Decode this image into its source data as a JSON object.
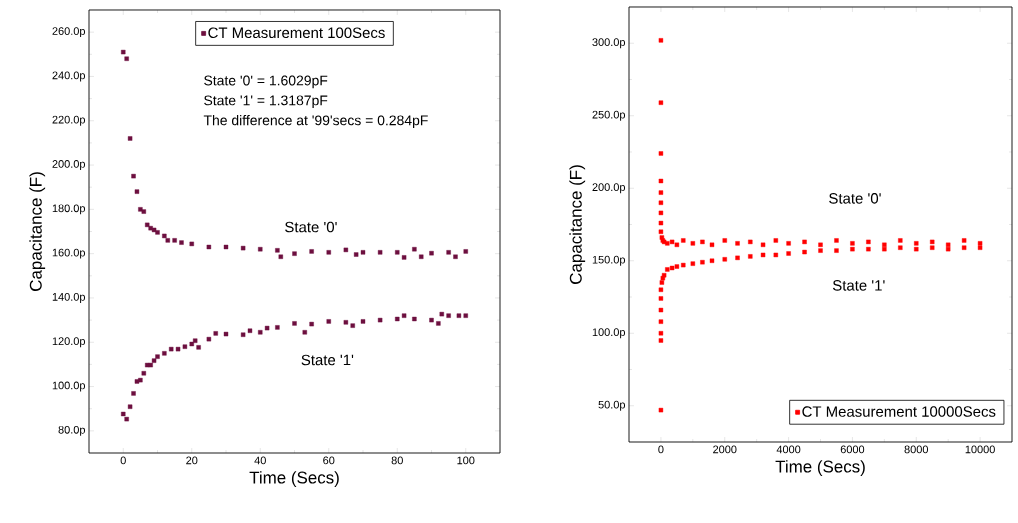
{
  "chart_data": [
    {
      "type": "scatter",
      "xlabel": "Time (Secs)",
      "ylabel": "Capacitance (F)",
      "marker": "square",
      "legend": "top",
      "xlim": [
        -10,
        110
      ],
      "ylim": [
        70,
        270
      ],
      "xticks": [
        0,
        20,
        40,
        60,
        80,
        100
      ],
      "yticks": [
        {
          "value": 80,
          "label": "80.0p"
        },
        {
          "value": 100,
          "label": "100.0p"
        },
        {
          "value": 120,
          "label": "120.0p"
        },
        {
          "value": 140,
          "label": "140.0p"
        },
        {
          "value": 160,
          "label": "160.0p"
        },
        {
          "value": 180,
          "label": "180.0p"
        },
        {
          "value": 200,
          "label": "200.0p"
        },
        {
          "value": 220,
          "label": "220.0p"
        },
        {
          "value": 240,
          "label": "240.0p"
        },
        {
          "value": 260,
          "label": "260.0p"
        }
      ],
      "annotations": [
        "State '0' = 1.6029pF",
        "State '1' = 1.3187pF",
        "The difference at '99'secs = 0.284pF",
        "State '0'",
        "State '1'"
      ],
      "series": [
        {
          "name": "CT Measurement 100Secs",
          "color": "#6d0f3f",
          "x": [
            0,
            1,
            2,
            3,
            4,
            5,
            6,
            7,
            8,
            9,
            10,
            12,
            13,
            15,
            17,
            20,
            25,
            30,
            35,
            40,
            45,
            46,
            50,
            55,
            60,
            65,
            68,
            70,
            75,
            80,
            82,
            85,
            87,
            90,
            95,
            97,
            100,
            0,
            1,
            2,
            3,
            4,
            5,
            6,
            7,
            8,
            9,
            10,
            12,
            14,
            16,
            18,
            20,
            21,
            22,
            25,
            27,
            30,
            35,
            37,
            40,
            42,
            45,
            50,
            53,
            55,
            60,
            65,
            67,
            70,
            75,
            80,
            82,
            85,
            90,
            92,
            93,
            95,
            98,
            100
          ],
          "values": [
            251,
            248,
            212,
            195,
            188,
            180,
            179,
            173,
            171.5,
            170.7,
            169.6,
            168,
            166,
            166,
            165,
            164.4,
            163,
            163,
            162.5,
            162,
            161.5,
            158.6,
            160,
            161,
            160.6,
            161.7,
            159.6,
            160.6,
            160.6,
            160.6,
            158.3,
            162,
            158.6,
            160.2,
            160.6,
            158.6,
            161,
            87.6,
            85.3,
            90.9,
            96.9,
            102.3,
            102.9,
            106,
            109.7,
            109.7,
            111.7,
            113.5,
            115,
            116.9,
            116.9,
            118,
            119.2,
            120.7,
            117.7,
            121.4,
            124,
            123.7,
            123.4,
            125.2,
            124.5,
            126.4,
            126.7,
            128.5,
            124.5,
            128.2,
            129.4,
            129,
            127.5,
            129.4,
            130,
            130.5,
            132,
            130.5,
            130,
            128.5,
            132.7,
            132,
            132,
            132
          ]
        }
      ]
    },
    {
      "type": "scatter",
      "xlabel": "Time (Secs)",
      "ylabel": "Capacitance (F)",
      "marker": "square",
      "legend": "bottom right",
      "xlim": [
        -1000,
        11000
      ],
      "ylim": [
        25,
        325
      ],
      "xticks": [
        0,
        2000,
        4000,
        6000,
        8000,
        10000
      ],
      "yticks": [
        {
          "value": 50,
          "label": "50.0p"
        },
        {
          "value": 100,
          "label": "100.0p"
        },
        {
          "value": 150,
          "label": "150.0p"
        },
        {
          "value": 200,
          "label": "200.0p"
        },
        {
          "value": 250,
          "label": "250.0p"
        },
        {
          "value": 300,
          "label": "300.0p"
        }
      ],
      "annotations": [
        "State '0'",
        "State '1'"
      ],
      "series": [
        {
          "name": "CT Measurement 10000Secs",
          "color": "#ff0000",
          "x": [
            0,
            0,
            0,
            0,
            0,
            0,
            0,
            0,
            0,
            0,
            0,
            0,
            0,
            0,
            0,
            0,
            30,
            30,
            60,
            60,
            100,
            100,
            200,
            200,
            350,
            350,
            500,
            500,
            700,
            700,
            1000,
            1000,
            1300,
            1300,
            1600,
            1600,
            2000,
            2000,
            2400,
            2400,
            2800,
            2800,
            3200,
            3200,
            3600,
            3600,
            4000,
            4000,
            4500,
            4500,
            5000,
            5000,
            5500,
            5500,
            6000,
            6000,
            6500,
            6500,
            7000,
            7000,
            7500,
            7500,
            8000,
            8000,
            8500,
            8500,
            9000,
            9000,
            9500,
            9500,
            10000,
            10000
          ],
          "values": [
            302,
            259,
            224,
            205,
            197,
            190,
            183,
            176,
            170,
            47,
            95,
            100,
            108,
            116,
            124,
            130,
            166,
            135,
            164,
            138,
            163,
            140,
            162,
            144,
            163,
            145,
            161,
            146,
            164,
            147,
            162,
            148,
            163,
            149,
            161,
            150,
            164,
            151,
            162,
            152,
            163,
            153,
            161,
            154,
            164,
            154,
            162,
            155,
            163,
            156,
            161,
            157,
            164,
            157,
            162,
            158,
            163,
            158,
            161,
            158,
            164,
            159,
            162,
            158,
            163,
            159,
            161,
            158,
            164,
            159,
            162,
            159
          ]
        }
      ]
    }
  ]
}
